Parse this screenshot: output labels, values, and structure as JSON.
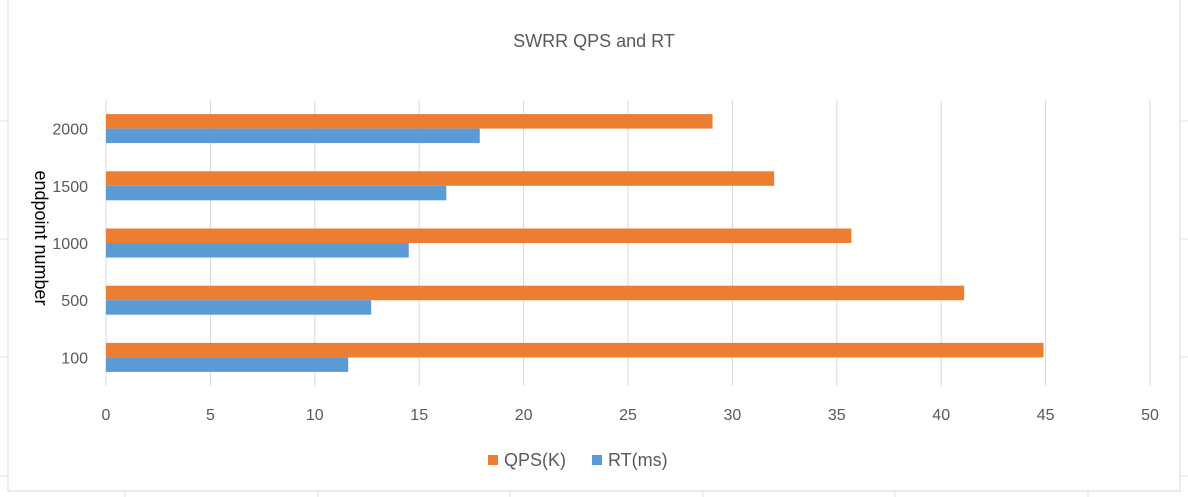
{
  "chart_data": {
    "type": "bar",
    "orientation": "horizontal",
    "title": "SWRR QPS and RT",
    "ylabel": "endpoint number",
    "xlabel": "",
    "categories": [
      "100",
      "500",
      "1000",
      "1500",
      "2000"
    ],
    "series": [
      {
        "name": "QPS(K)",
        "color": "#ED7D31",
        "values": [
          44.9,
          41.1,
          35.7,
          32.0,
          29.05
        ]
      },
      {
        "name": "RT(ms)",
        "color": "#5B9BD5",
        "values": [
          11.6,
          12.7,
          14.5,
          16.3,
          17.9
        ]
      }
    ],
    "xlim": [
      0,
      50
    ],
    "xticks": [
      "0",
      "5",
      "10",
      "15",
      "20",
      "25",
      "30",
      "35",
      "40",
      "45",
      "50"
    ],
    "grid": true,
    "legend": "bottom"
  }
}
